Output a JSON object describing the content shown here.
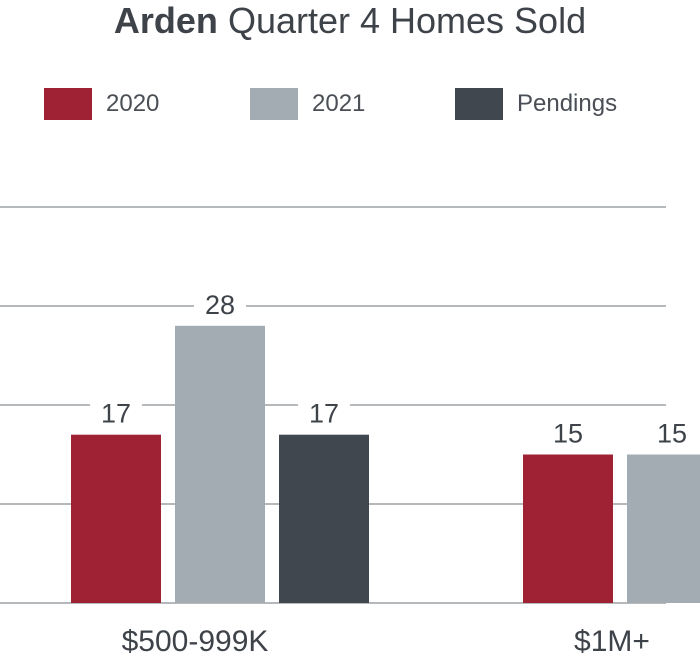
{
  "colors": {
    "2020": "#9e2233",
    "2021": "#a3acb2",
    "Pendings": "#41474e",
    "grid": "#8a8f94",
    "text": "#3e434a"
  },
  "chart_data": {
    "type": "bar",
    "title_bold": "Arden",
    "title_rest": "Quarter 4 Homes Sold",
    "categories": [
      "$500-999K",
      "$1M+"
    ],
    "series": [
      {
        "name": "2020",
        "values": [
          17,
          15
        ]
      },
      {
        "name": "2021",
        "values": [
          28,
          15
        ]
      },
      {
        "name": "Pendings",
        "values": [
          17,
          null
        ]
      }
    ],
    "data_labels": [
      [
        "17",
        "28",
        "17"
      ],
      [
        "15",
        "15",
        ""
      ]
    ],
    "ylim": [
      0,
      40
    ],
    "grid": true,
    "legend_position": "top"
  }
}
